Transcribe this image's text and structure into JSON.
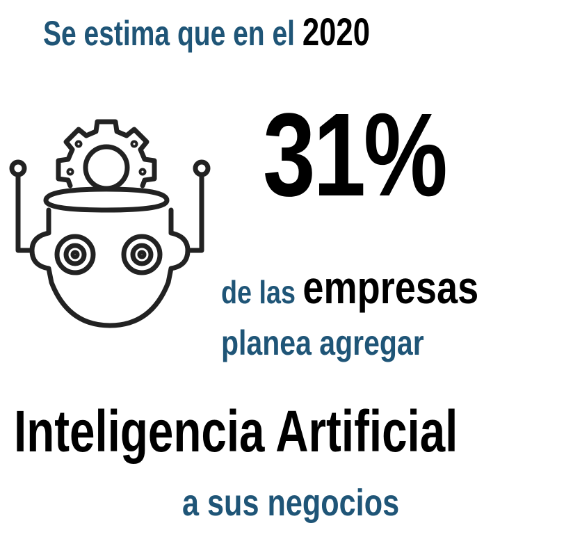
{
  "headline": {
    "prefix": "Se estima que en el",
    "year": "2020"
  },
  "statistic": {
    "value": "31%"
  },
  "subject": {
    "prefix": "de las",
    "emphasis": "empresas"
  },
  "verb_phrase": "planea agregar",
  "technology": "Inteligencia Artificial",
  "closing": "a sus negocios",
  "icon": "robot-gear-icon",
  "colors": {
    "accent_blue": "#1f5577",
    "emphasis_black": "#000000",
    "background": "#ffffff"
  }
}
